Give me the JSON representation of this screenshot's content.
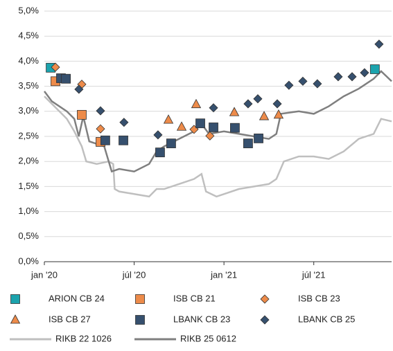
{
  "chart_data": {
    "type": "scatter",
    "xlim": [
      0,
      23.2
    ],
    "ylim": [
      0,
      5
    ],
    "xticks": [
      {
        "value": 0,
        "label": "jan '20"
      },
      {
        "value": 6,
        "label": "júl '20"
      },
      {
        "value": 12,
        "label": "jan '21"
      },
      {
        "value": 18,
        "label": "júl '21"
      }
    ],
    "yticks": [
      {
        "value": 0,
        "label": "0,0%"
      },
      {
        "value": 0.5,
        "label": "0,5%"
      },
      {
        "value": 1,
        "label": "1,0%"
      },
      {
        "value": 1.5,
        "label": "1,5%"
      },
      {
        "value": 2,
        "label": "2,0%"
      },
      {
        "value": 2.5,
        "label": "2,5%"
      },
      {
        "value": 3,
        "label": "3,0%"
      },
      {
        "value": 3.5,
        "label": "3,5%"
      },
      {
        "value": 4,
        "label": "4,0%"
      },
      {
        "value": 4.5,
        "label": "4,5%"
      },
      {
        "value": 5,
        "label": "5,0%"
      }
    ],
    "grid": true,
    "series": [
      {
        "name": "ARION CB 24",
        "color": "#1ba3ad",
        "marker": "square",
        "x": [
          0.42,
          22.08
        ],
        "values": [
          3.87,
          3.84
        ]
      },
      {
        "name": "ISB CB 21",
        "color": "#ed8b4a",
        "marker": "square",
        "x": [
          0.74,
          2.5,
          3.75
        ],
        "values": [
          3.6,
          2.93,
          2.39
        ]
      },
      {
        "name": "ISB CB 23",
        "color": "#ed8b4a",
        "marker": "diamond",
        "x": [
          0.74,
          2.5,
          3.75,
          10.0,
          11.06
        ],
        "values": [
          3.88,
          3.54,
          2.65,
          2.64,
          2.51
        ]
      },
      {
        "name": "ISB CB 27",
        "color": "#ed8b4a",
        "marker": "triangle",
        "x": [
          8.29,
          9.17,
          10.14,
          12.69,
          14.68,
          15.65
        ],
        "values": [
          2.83,
          2.69,
          3.14,
          2.98,
          2.9,
          2.93
        ]
      },
      {
        "name": "LBANK CB 23",
        "color": "#36506e",
        "marker": "square",
        "x": [
          1.11,
          1.44,
          4.07,
          5.28,
          7.73,
          8.47,
          10.42,
          11.3,
          12.73,
          13.61,
          14.31
        ],
        "values": [
          3.66,
          3.65,
          2.42,
          2.42,
          2.18,
          2.36,
          2.76,
          2.68,
          2.67,
          2.36,
          2.46
        ]
      },
      {
        "name": "LBANK CB 25",
        "color": "#36506e",
        "marker": "diamond",
        "x": [
          2.31,
          3.75,
          5.32,
          7.59,
          11.3,
          13.61,
          14.26,
          15.56,
          16.34,
          17.27,
          18.24,
          19.63,
          20.56,
          21.39,
          22.36
        ],
        "values": [
          3.44,
          3.01,
          2.78,
          2.53,
          3.07,
          3.15,
          3.25,
          3.15,
          3.52,
          3.6,
          3.55,
          3.69,
          3.69,
          3.77,
          4.34
        ]
      },
      {
        "name": "RIKB 22 1026",
        "color": "#bfbfbf",
        "marker": "line",
        "x": [
          0,
          0.5,
          1,
          1.5,
          2,
          2.5,
          2.8,
          3.5,
          4.3,
          4.6,
          4.7,
          5,
          6,
          7,
          7.5,
          8,
          9,
          10,
          10.5,
          10.8,
          11.5,
          12,
          13,
          14,
          15,
          15.5,
          16,
          17,
          18,
          19,
          20,
          21,
          22,
          22.5,
          23.2
        ],
        "values": [
          3.3,
          3.15,
          3.0,
          2.85,
          2.6,
          2.3,
          2.0,
          1.95,
          2.0,
          1.95,
          1.45,
          1.4,
          1.35,
          1.3,
          1.45,
          1.45,
          1.55,
          1.65,
          1.75,
          1.4,
          1.3,
          1.35,
          1.45,
          1.5,
          1.55,
          1.65,
          2.0,
          2.1,
          2.1,
          2.05,
          2.2,
          2.45,
          2.55,
          2.85,
          2.8
        ]
      },
      {
        "name": "RIKB 25 0612",
        "color": "#7f7f7f",
        "marker": "line",
        "x": [
          0,
          0.5,
          1,
          1.5,
          2,
          2.3,
          2.6,
          3,
          3.5,
          4,
          4.5,
          5,
          6,
          7,
          7.5,
          8,
          9,
          10,
          10.5,
          11,
          12,
          13,
          14,
          15,
          15.5,
          15.8,
          17,
          18,
          19,
          20,
          21,
          22,
          22.5,
          23.2
        ],
        "values": [
          3.4,
          3.2,
          3.1,
          3.0,
          2.85,
          2.5,
          2.9,
          2.4,
          2.35,
          2.3,
          1.8,
          1.85,
          1.8,
          1.95,
          2.2,
          2.3,
          2.45,
          2.6,
          2.75,
          2.55,
          2.6,
          2.55,
          2.5,
          2.45,
          2.55,
          2.95,
          3.0,
          2.95,
          3.1,
          3.3,
          3.45,
          3.65,
          3.8,
          3.6
        ]
      }
    ]
  }
}
